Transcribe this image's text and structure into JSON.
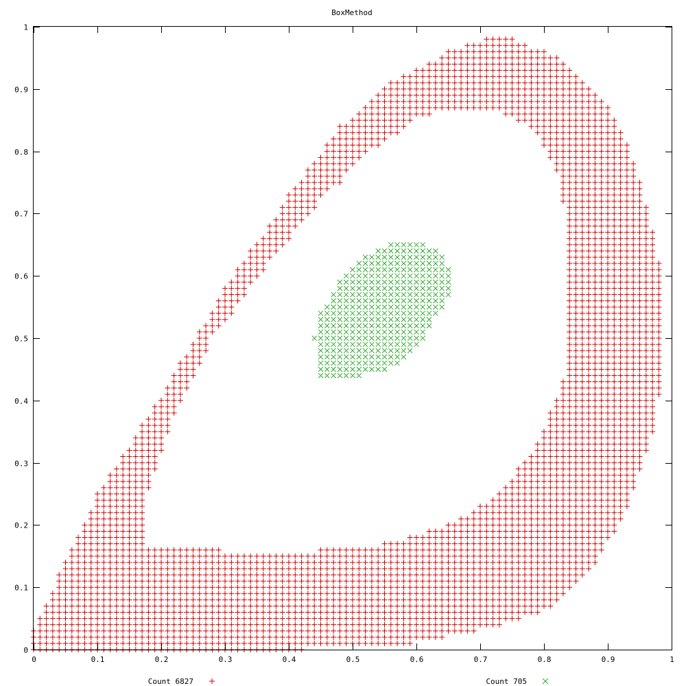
{
  "chart_data": {
    "type": "scatter",
    "title": "BoxMethod",
    "xlabel": "",
    "ylabel": "",
    "xlim": [
      0,
      1
    ],
    "ylim": [
      0,
      1
    ],
    "grid": false,
    "legend_placement": "bottom",
    "x_ticks": [
      "0",
      "0.1",
      "0.2",
      "0.3",
      "0.4",
      "0.5",
      "0.6",
      "0.7",
      "0.8",
      "0.9",
      "1"
    ],
    "y_ticks": [
      "0",
      "0.1",
      "0.2",
      "0.3",
      "0.4",
      "0.5",
      "0.6",
      "0.7",
      "0.8",
      "0.9",
      "1"
    ],
    "grid_step": 0.01,
    "series": [
      {
        "name": "Count 6827",
        "marker": "plus",
        "color": "#cc0000",
        "count": 6827,
        "region": {
          "shape": "annulus",
          "outer": [
            [
              0.0,
              0.0
            ],
            [
              0.43,
              0.0
            ],
            [
              0.6,
              0.01
            ],
            [
              0.7,
              0.03
            ],
            [
              0.8,
              0.06
            ],
            [
              0.87,
              0.12
            ],
            [
              0.93,
              0.22
            ],
            [
              0.97,
              0.34
            ],
            [
              0.99,
              0.46
            ],
            [
              0.99,
              0.58
            ],
            [
              0.97,
              0.68
            ],
            [
              0.94,
              0.79
            ],
            [
              0.9,
              0.88
            ],
            [
              0.83,
              0.95
            ],
            [
              0.73,
              0.99
            ],
            [
              0.65,
              0.96
            ],
            [
              0.56,
              0.91
            ],
            [
              0.48,
              0.84
            ],
            [
              0.4,
              0.73
            ],
            [
              0.3,
              0.58
            ],
            [
              0.2,
              0.41
            ],
            [
              0.1,
              0.25
            ],
            [
              0.04,
              0.12
            ],
            [
              0.0,
              0.03
            ]
          ],
          "inner": [
            [
              0.18,
              0.17
            ],
            [
              0.3,
              0.16
            ],
            [
              0.45,
              0.16
            ],
            [
              0.55,
              0.17
            ],
            [
              0.65,
              0.2
            ],
            [
              0.73,
              0.25
            ],
            [
              0.79,
              0.33
            ],
            [
              0.83,
              0.43
            ],
            [
              0.84,
              0.54
            ],
            [
              0.84,
              0.66
            ],
            [
              0.82,
              0.77
            ],
            [
              0.78,
              0.84
            ],
            [
              0.72,
              0.87
            ],
            [
              0.66,
              0.87
            ],
            [
              0.6,
              0.85
            ],
            [
              0.53,
              0.8
            ],
            [
              0.45,
              0.72
            ],
            [
              0.37,
              0.62
            ],
            [
              0.28,
              0.5
            ],
            [
              0.21,
              0.35
            ],
            [
              0.18,
              0.25
            ]
          ]
        }
      },
      {
        "name": "Count 705",
        "marker": "cross",
        "color": "#33aa33",
        "count": 705,
        "region": {
          "shape": "polygon",
          "outer": [
            [
              0.45,
              0.44
            ],
            [
              0.5,
              0.435
            ],
            [
              0.56,
              0.45
            ],
            [
              0.6,
              0.48
            ],
            [
              0.63,
              0.53
            ],
            [
              0.65,
              0.56
            ],
            [
              0.655,
              0.6
            ],
            [
              0.64,
              0.64
            ],
            [
              0.6,
              0.655
            ],
            [
              0.56,
              0.65
            ],
            [
              0.52,
              0.63
            ],
            [
              0.48,
              0.59
            ],
            [
              0.45,
              0.54
            ],
            [
              0.44,
              0.5
            ]
          ]
        }
      }
    ]
  }
}
